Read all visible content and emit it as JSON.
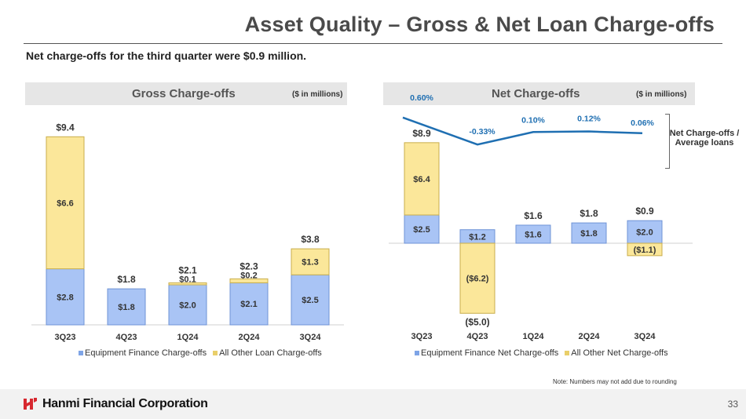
{
  "title": "Asset Quality – Gross & Net Loan Charge-offs",
  "subtitle": "Net charge-offs for the third quarter were $0.9 million.",
  "note": "Note: Numbers may not add due to rounding",
  "footer": {
    "company": "Hanmi Financial Corporation",
    "page": "33"
  },
  "colors": {
    "blue": "#a9c4f5",
    "blue_edge": "#6f93d6",
    "yellow": "#fbe79a",
    "yellow_edge": "#c9ae4c",
    "line": "#1f6fb2",
    "header_bg": "#e6e6e6"
  },
  "chart_data": [
    {
      "type": "bar",
      "stacked": true,
      "title": "Gross Charge-offs",
      "units": "($ in millions)",
      "categories": [
        "3Q23",
        "4Q23",
        "1Q24",
        "2Q24",
        "3Q24"
      ],
      "series": [
        {
          "name": "Equipment Finance Charge-offs",
          "values": [
            2.8,
            1.8,
            2.0,
            2.1,
            2.5
          ],
          "labels": [
            "$2.8",
            "$1.8",
            "$2.0",
            "$2.1",
            "$2.5"
          ]
        },
        {
          "name": "All Other Loan Charge-offs",
          "values": [
            6.6,
            0.0,
            0.1,
            0.2,
            1.3
          ],
          "labels": [
            "$6.6",
            "",
            "$0.1",
            "$0.2",
            "$1.3"
          ]
        }
      ],
      "totals": [
        "$9.4",
        "$1.8",
        "$2.1",
        "$2.3",
        "$3.8"
      ],
      "ylim": [
        0,
        9.4
      ],
      "legend": "bottom"
    },
    {
      "type": "bar",
      "stacked": true,
      "title": "Net Charge-offs",
      "units": "($ in millions)",
      "categories": [
        "3Q23",
        "4Q23",
        "1Q24",
        "2Q24",
        "3Q24"
      ],
      "series": [
        {
          "name": "Equipment Finance Net Charge-offs",
          "values": [
            2.5,
            1.2,
            1.6,
            1.8,
            2.0
          ],
          "labels": [
            "$2.5",
            "$1.2",
            "$1.6",
            "$1.8",
            "$2.0"
          ]
        },
        {
          "name": "All Other Net Charge-offs",
          "values": [
            6.4,
            -6.2,
            0.0,
            0.0,
            -1.1
          ],
          "labels": [
            "$6.4",
            "($6.2)",
            "",
            "",
            "($1.1)"
          ]
        }
      ],
      "totals": [
        "$8.9",
        "($5.0)",
        "$1.6",
        "$1.8",
        "$0.9"
      ],
      "line_series": {
        "name": "Net Charge-offs / Average loans",
        "values": [
          0.6,
          -0.33,
          0.1,
          0.12,
          0.06
        ],
        "labels": [
          "0.60%",
          "-0.33%",
          "0.10%",
          "0.12%",
          "0.06%"
        ]
      },
      "line_label": "Net Charge-offs / Average loans",
      "ylim": [
        -6.2,
        8.9
      ],
      "legend": "bottom"
    }
  ]
}
